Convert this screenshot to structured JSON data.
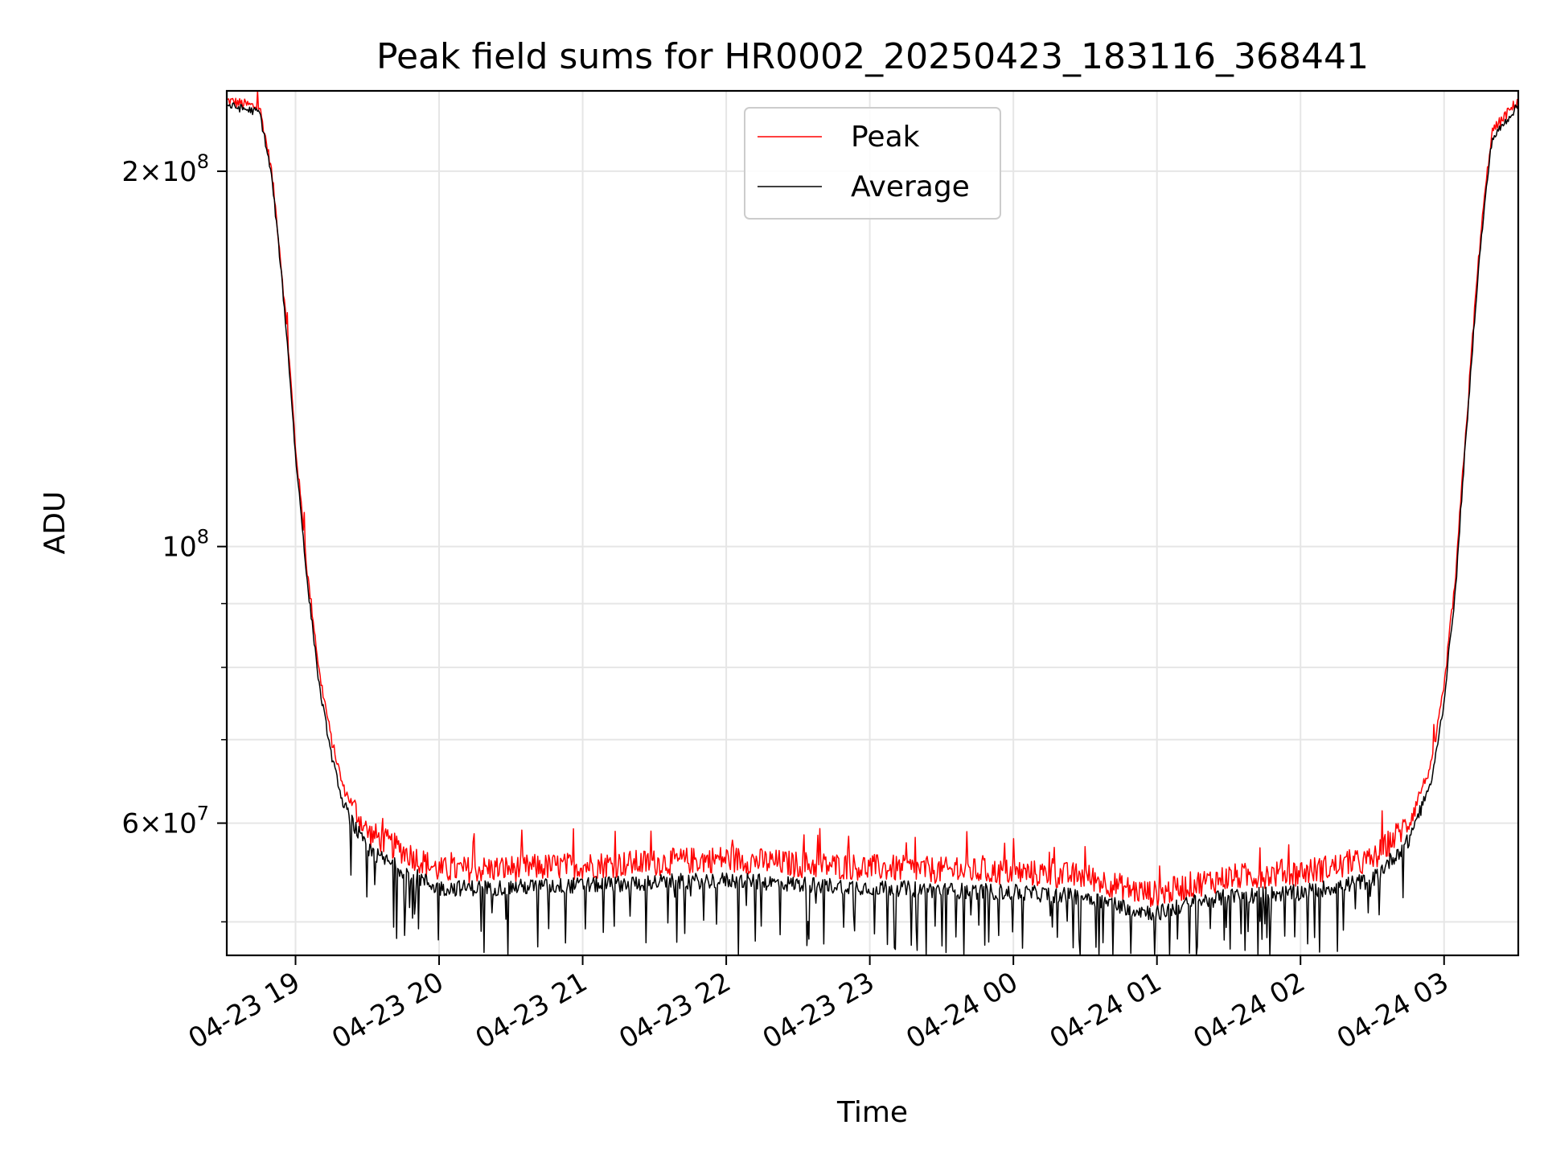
{
  "chart_data": {
    "type": "line",
    "title": "Peak field sums for HR0002_20250423_183116_368441",
    "xlabel": "Time",
    "ylabel": "ADU",
    "yscale": "log",
    "ylim": [
      47000000,
      232000000
    ],
    "xlim": [
      "2025-04-23T18:31:16",
      "2025-04-24T03:31:00"
    ],
    "grid": true,
    "legend_position": "top-center",
    "x_ticks": [
      {
        "t": "2025-04-23T19:00",
        "label": "04-23 19"
      },
      {
        "t": "2025-04-23T20:00",
        "label": "04-23 20"
      },
      {
        "t": "2025-04-23T21:00",
        "label": "04-23 21"
      },
      {
        "t": "2025-04-23T22:00",
        "label": "04-23 22"
      },
      {
        "t": "2025-04-23T23:00",
        "label": "04-23 23"
      },
      {
        "t": "2025-04-24T00:00",
        "label": "04-24 00"
      },
      {
        "t": "2025-04-24T01:00",
        "label": "04-24 01"
      },
      {
        "t": "2025-04-24T02:00",
        "label": "04-24 02"
      },
      {
        "t": "2025-04-24T03:00",
        "label": "04-24 03"
      }
    ],
    "y_major_ticks": [
      {
        "value": 60000000,
        "base": "6",
        "exp": "7"
      },
      {
        "value": 100000000,
        "base": "",
        "exp": "8"
      },
      {
        "value": 200000000,
        "base": "2",
        "exp": "8"
      }
    ],
    "y_minor_ticks": [
      50000000,
      70000000,
      80000000,
      90000000
    ],
    "colors": {
      "peak": "#ff0000",
      "average": "#000000"
    },
    "series": [
      {
        "name": "Peak",
        "color": "#ff0000",
        "x": [
          "2025-04-23T18:31",
          "2025-04-23T18:45",
          "2025-04-23T18:50",
          "2025-04-23T18:55",
          "2025-04-23T19:00",
          "2025-04-23T19:05",
          "2025-04-23T19:10",
          "2025-04-23T19:15",
          "2025-04-23T19:20",
          "2025-04-23T19:30",
          "2025-04-23T19:45",
          "2025-04-23T20:00",
          "2025-04-23T20:30",
          "2025-04-23T21:00",
          "2025-04-23T21:30",
          "2025-04-23T22:00",
          "2025-04-23T22:30",
          "2025-04-23T23:00",
          "2025-04-23T23:30",
          "2025-04-24T00:00",
          "2025-04-24T00:30",
          "2025-04-24T00:50",
          "2025-04-24T01:00",
          "2025-04-24T01:15",
          "2025-04-24T01:30",
          "2025-04-24T02:00",
          "2025-04-24T02:30",
          "2025-04-24T02:45",
          "2025-04-24T02:55",
          "2025-04-24T03:00",
          "2025-04-24T03:05",
          "2025-04-24T03:10",
          "2025-04-24T03:15",
          "2025-04-24T03:20",
          "2025-04-24T03:31"
        ],
        "y": [
          228000000,
          225000000,
          200000000,
          160000000,
          120000000,
          95000000,
          79000000,
          70000000,
          64000000,
          59000000,
          57000000,
          55000000,
          55200000,
          55500000,
          55800000,
          56200000,
          55600000,
          55300000,
          55000000,
          54800000,
          54400000,
          53000000,
          52600000,
          53600000,
          54300000,
          54800000,
          56000000,
          60000000,
          67000000,
          77000000,
          95000000,
          130000000,
          175000000,
          215000000,
          228000000
        ]
      },
      {
        "name": "Average",
        "color": "#000000",
        "x": [
          "2025-04-23T18:31",
          "2025-04-23T18:45",
          "2025-04-23T18:50",
          "2025-04-23T18:55",
          "2025-04-23T19:00",
          "2025-04-23T19:05",
          "2025-04-23T19:10",
          "2025-04-23T19:15",
          "2025-04-23T19:20",
          "2025-04-23T19:30",
          "2025-04-23T19:45",
          "2025-04-23T20:00",
          "2025-04-23T20:30",
          "2025-04-23T21:00",
          "2025-04-23T21:30",
          "2025-04-23T22:00",
          "2025-04-23T22:30",
          "2025-04-23T23:00",
          "2025-04-23T23:30",
          "2025-04-24T00:00",
          "2025-04-24T00:30",
          "2025-04-24T00:50",
          "2025-04-24T01:00",
          "2025-04-24T01:15",
          "2025-04-24T01:30",
          "2025-04-24T02:00",
          "2025-04-24T02:30",
          "2025-04-24T02:45",
          "2025-04-24T02:55",
          "2025-04-24T03:00",
          "2025-04-24T03:05",
          "2025-04-24T03:10",
          "2025-04-24T03:15",
          "2025-04-24T03:20",
          "2025-04-24T03:31"
        ],
        "y": [
          226000000,
          223000000,
          198000000,
          158000000,
          118000000,
          93000000,
          77000000,
          68000000,
          62000000,
          57000000,
          55000000,
          53200000,
          53300000,
          53500000,
          53800000,
          54000000,
          53600000,
          53300000,
          53000000,
          52800000,
          52400000,
          51200000,
          50800000,
          51800000,
          52400000,
          52800000,
          54000000,
          58000000,
          65000000,
          75000000,
          93000000,
          128000000,
          172000000,
          212000000,
          226000000
        ]
      }
    ]
  }
}
